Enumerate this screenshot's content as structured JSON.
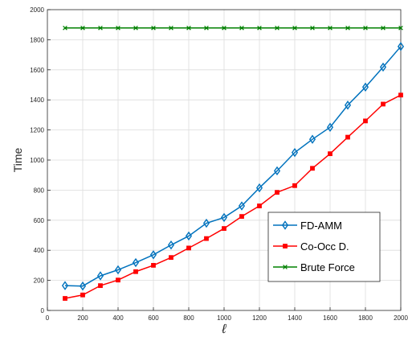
{
  "chart_data": {
    "type": "line",
    "xlabel": "ℓ",
    "ylabel": "Time",
    "xlim": [
      0,
      2000
    ],
    "ylim": [
      0,
      2000
    ],
    "xticks": [
      0,
      200,
      400,
      600,
      800,
      1000,
      1200,
      1400,
      1600,
      1800,
      2000
    ],
    "yticks": [
      0,
      200,
      400,
      600,
      800,
      1000,
      1200,
      1400,
      1600,
      1800,
      2000
    ],
    "grid": true,
    "legend_position": "bottom-right",
    "x": [
      100,
      200,
      300,
      400,
      500,
      600,
      700,
      800,
      900,
      1000,
      1100,
      1200,
      1300,
      1400,
      1500,
      1600,
      1700,
      1800,
      1900,
      2000
    ],
    "series": [
      {
        "name": "FD-AMM",
        "color": "#0072bd",
        "marker": "diamond",
        "values": [
          165,
          162,
          230,
          270,
          318,
          370,
          435,
          495,
          580,
          618,
          695,
          815,
          928,
          1050,
          1138,
          1218,
          1365,
          1485,
          1618,
          1755
        ]
      },
      {
        "name": "Co-Occ D.",
        "color": "#ff0000",
        "marker": "square",
        "values": [
          80,
          103,
          165,
          202,
          258,
          300,
          352,
          415,
          478,
          545,
          625,
          695,
          785,
          830,
          945,
          1042,
          1152,
          1260,
          1372,
          1432
        ]
      },
      {
        "name": "Brute Force",
        "color": "#008000",
        "marker": "x",
        "values": [
          1878,
          1878,
          1878,
          1878,
          1878,
          1878,
          1878,
          1878,
          1878,
          1878,
          1878,
          1878,
          1878,
          1878,
          1878,
          1878,
          1878,
          1878,
          1878,
          1878
        ]
      }
    ]
  }
}
